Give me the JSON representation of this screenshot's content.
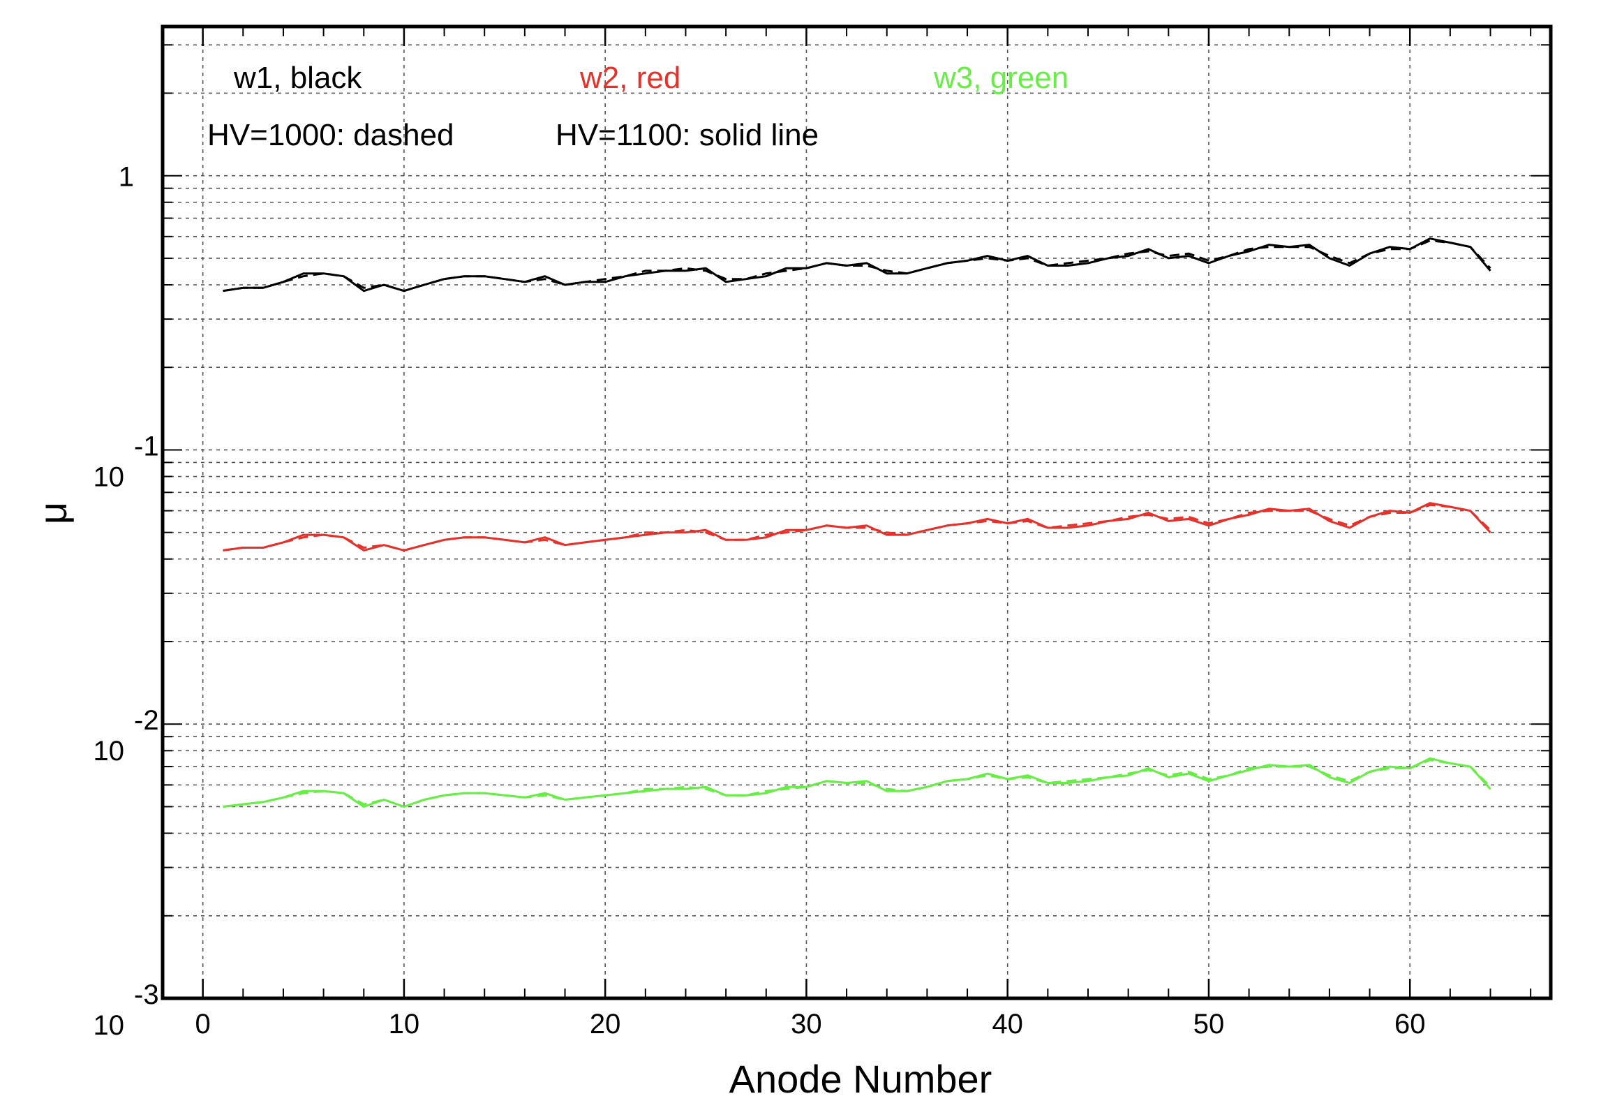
{
  "chart_data": {
    "type": "line",
    "title": "",
    "xlabel": "Anode Number",
    "ylabel": "μ",
    "xlim": [
      -2,
      67
    ],
    "ylim": [
      0.001,
      3.5
    ],
    "yscale": "log",
    "grid": true,
    "x_ticks": [
      "0",
      "10",
      "20",
      "30",
      "40",
      "50",
      "60"
    ],
    "y_ticks": [
      {
        "base": "10",
        "exp": "-3",
        "value": 0.001
      },
      {
        "base": "10",
        "exp": "-2",
        "value": 0.01
      },
      {
        "base": "10",
        "exp": "-1",
        "value": 0.1
      },
      {
        "base": "1",
        "exp": "",
        "value": 1
      }
    ],
    "annotations": [
      {
        "text": "w1, black",
        "color": "#000000"
      },
      {
        "text": "w2, red",
        "color": "#e8302a"
      },
      {
        "text": "w3, green",
        "color": "#66ee44"
      },
      {
        "text": "HV=1000: dashed",
        "color": "#000000"
      },
      {
        "text": "HV=1100: solid line",
        "color": "#000000"
      }
    ],
    "x": [
      1,
      2,
      3,
      4,
      5,
      6,
      7,
      8,
      9,
      10,
      11,
      12,
      13,
      14,
      15,
      16,
      17,
      18,
      19,
      20,
      21,
      22,
      23,
      24,
      25,
      26,
      27,
      28,
      29,
      30,
      31,
      32,
      33,
      34,
      35,
      36,
      37,
      38,
      39,
      40,
      41,
      42,
      43,
      44,
      45,
      46,
      47,
      48,
      49,
      50,
      51,
      52,
      53,
      54,
      55,
      56,
      57,
      58,
      59,
      60,
      61,
      62,
      63,
      64
    ],
    "series": [
      {
        "style": "solid",
        "color": "#000000",
        "values": [
          0.38,
          0.39,
          0.39,
          0.41,
          0.44,
          0.44,
          0.43,
          0.38,
          0.4,
          0.38,
          0.4,
          0.42,
          0.43,
          0.43,
          0.42,
          0.41,
          0.43,
          0.4,
          0.41,
          0.41,
          0.43,
          0.44,
          0.45,
          0.45,
          0.46,
          0.41,
          0.42,
          0.43,
          0.46,
          0.46,
          0.48,
          0.47,
          0.48,
          0.44,
          0.44,
          0.46,
          0.48,
          0.49,
          0.51,
          0.49,
          0.51,
          0.47,
          0.47,
          0.48,
          0.5,
          0.51,
          0.54,
          0.5,
          0.51,
          0.48,
          0.51,
          0.53,
          0.56,
          0.55,
          0.56,
          0.5,
          0.47,
          0.52,
          0.55,
          0.54,
          0.59,
          0.57,
          0.55,
          0.45
        ]
      },
      {
        "style": "dashed",
        "color": "#000000",
        "values": [
          0.38,
          0.39,
          0.39,
          0.41,
          0.43,
          0.44,
          0.43,
          0.39,
          0.4,
          0.38,
          0.4,
          0.42,
          0.43,
          0.43,
          0.42,
          0.41,
          0.42,
          0.4,
          0.41,
          0.42,
          0.43,
          0.45,
          0.45,
          0.46,
          0.45,
          0.42,
          0.42,
          0.44,
          0.45,
          0.46,
          0.48,
          0.47,
          0.47,
          0.45,
          0.44,
          0.46,
          0.48,
          0.49,
          0.5,
          0.49,
          0.5,
          0.47,
          0.48,
          0.49,
          0.5,
          0.52,
          0.53,
          0.51,
          0.52,
          0.49,
          0.51,
          0.54,
          0.55,
          0.55,
          0.55,
          0.51,
          0.48,
          0.52,
          0.54,
          0.54,
          0.58,
          0.57,
          0.55,
          0.46
        ]
      },
      {
        "style": "solid",
        "color": "#e8302a",
        "values": [
          0.043,
          0.044,
          0.044,
          0.046,
          0.049,
          0.049,
          0.048,
          0.043,
          0.045,
          0.043,
          0.045,
          0.047,
          0.048,
          0.048,
          0.047,
          0.046,
          0.048,
          0.045,
          0.046,
          0.047,
          0.048,
          0.049,
          0.05,
          0.05,
          0.051,
          0.047,
          0.047,
          0.048,
          0.051,
          0.051,
          0.053,
          0.052,
          0.053,
          0.049,
          0.049,
          0.051,
          0.053,
          0.054,
          0.056,
          0.054,
          0.056,
          0.052,
          0.052,
          0.053,
          0.055,
          0.056,
          0.059,
          0.055,
          0.056,
          0.053,
          0.056,
          0.058,
          0.061,
          0.06,
          0.061,
          0.055,
          0.052,
          0.057,
          0.06,
          0.059,
          0.064,
          0.062,
          0.06,
          0.05
        ]
      },
      {
        "style": "dashed",
        "color": "#e8302a",
        "values": [
          0.043,
          0.044,
          0.044,
          0.046,
          0.048,
          0.049,
          0.048,
          0.044,
          0.045,
          0.043,
          0.045,
          0.047,
          0.048,
          0.048,
          0.047,
          0.046,
          0.047,
          0.045,
          0.046,
          0.047,
          0.048,
          0.05,
          0.05,
          0.051,
          0.05,
          0.047,
          0.047,
          0.049,
          0.05,
          0.051,
          0.053,
          0.052,
          0.052,
          0.05,
          0.049,
          0.051,
          0.053,
          0.054,
          0.055,
          0.054,
          0.055,
          0.052,
          0.053,
          0.054,
          0.055,
          0.057,
          0.058,
          0.056,
          0.057,
          0.054,
          0.056,
          0.059,
          0.06,
          0.06,
          0.06,
          0.056,
          0.053,
          0.057,
          0.059,
          0.059,
          0.063,
          0.062,
          0.06,
          0.051
        ]
      },
      {
        "style": "solid",
        "color": "#66ee44",
        "values": [
          0.005,
          0.0051,
          0.0052,
          0.0054,
          0.0057,
          0.0057,
          0.0056,
          0.005,
          0.0053,
          0.005,
          0.0053,
          0.0055,
          0.0056,
          0.0056,
          0.0055,
          0.0054,
          0.0056,
          0.0053,
          0.0054,
          0.0055,
          0.0056,
          0.0057,
          0.0058,
          0.0058,
          0.0059,
          0.0055,
          0.0055,
          0.0056,
          0.0059,
          0.0059,
          0.0062,
          0.0061,
          0.0062,
          0.0057,
          0.0057,
          0.0059,
          0.0062,
          0.0063,
          0.0066,
          0.0063,
          0.0065,
          0.0061,
          0.0061,
          0.0062,
          0.0064,
          0.0065,
          0.0069,
          0.0064,
          0.0066,
          0.0062,
          0.0065,
          0.0068,
          0.0071,
          0.007,
          0.0071,
          0.0064,
          0.0061,
          0.0067,
          0.007,
          0.0069,
          0.0075,
          0.0072,
          0.007,
          0.0058
        ]
      },
      {
        "style": "dashed",
        "color": "#66ee44",
        "values": [
          0.005,
          0.0051,
          0.0052,
          0.0054,
          0.0056,
          0.0057,
          0.0056,
          0.0051,
          0.0053,
          0.005,
          0.0053,
          0.0055,
          0.0056,
          0.0056,
          0.0055,
          0.0054,
          0.0055,
          0.0053,
          0.0054,
          0.0055,
          0.0056,
          0.0058,
          0.0058,
          0.0059,
          0.0058,
          0.0055,
          0.0055,
          0.0057,
          0.0058,
          0.0059,
          0.0062,
          0.0061,
          0.0061,
          0.0058,
          0.0057,
          0.0059,
          0.0062,
          0.0063,
          0.0065,
          0.0063,
          0.0064,
          0.0061,
          0.0062,
          0.0063,
          0.0064,
          0.0066,
          0.0068,
          0.0065,
          0.0067,
          0.0063,
          0.0065,
          0.0069,
          0.007,
          0.007,
          0.007,
          0.0065,
          0.0062,
          0.0067,
          0.0069,
          0.0069,
          0.0074,
          0.0072,
          0.007,
          0.0059
        ]
      }
    ]
  }
}
